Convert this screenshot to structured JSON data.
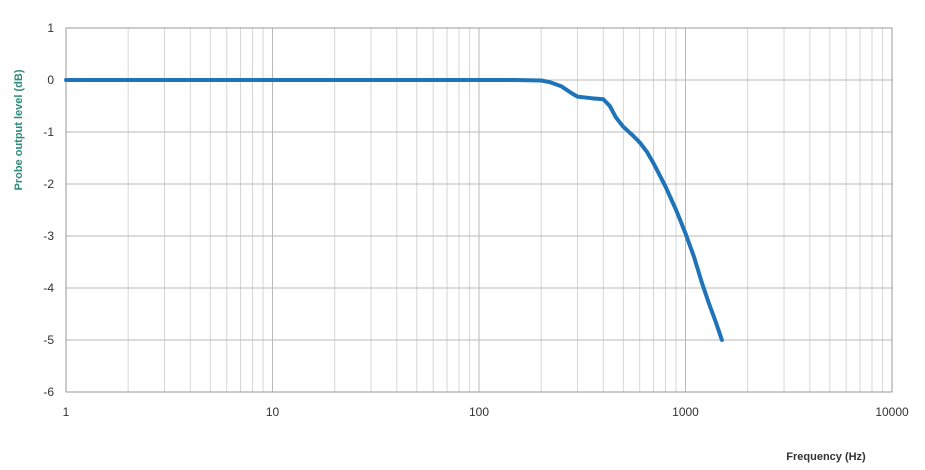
{
  "chart_data": {
    "type": "line",
    "xlabel": "Frequency (Hz)",
    "ylabel": "Probe output level (dB)",
    "x_scale": "log",
    "xlim": [
      1,
      10000
    ],
    "ylim": [
      -6,
      1
    ],
    "x_ticks": [
      1,
      10,
      100,
      1000,
      10000
    ],
    "y_ticks": [
      1,
      0,
      -1,
      -2,
      -3,
      -4,
      -5,
      -6
    ],
    "grid": true,
    "legend": "none",
    "series": [
      {
        "x": [
          1,
          10,
          100,
          150,
          200,
          220,
          250,
          280,
          300,
          350,
          400,
          430,
          460,
          500,
          550,
          600,
          650,
          700,
          800,
          900,
          1000,
          1100,
          1200,
          1300,
          1400,
          1500
        ],
        "y": [
          0,
          0,
          0,
          0,
          -0.01,
          -0.04,
          -0.12,
          -0.25,
          -0.32,
          -0.35,
          -0.37,
          -0.5,
          -0.72,
          -0.9,
          -1.05,
          -1.2,
          -1.38,
          -1.6,
          -2.05,
          -2.5,
          -2.95,
          -3.4,
          -3.9,
          -4.3,
          -4.65,
          -5.0
        ]
      }
    ]
  },
  "colors": {
    "series": "#1f73b8",
    "grid_major": "#b9b9b9",
    "grid_minor": "#d6d6d6",
    "axis_title_y": "#2e8b7a",
    "axis_title_x": "#333333",
    "frame": "#9a9a9a"
  }
}
